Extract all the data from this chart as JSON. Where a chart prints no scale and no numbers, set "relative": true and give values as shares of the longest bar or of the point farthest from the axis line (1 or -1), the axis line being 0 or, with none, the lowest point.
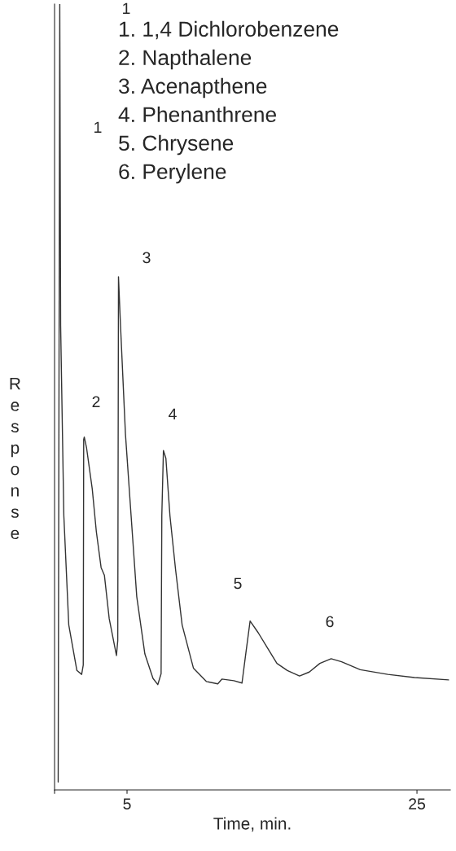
{
  "chart_data": {
    "type": "line",
    "relative": true,
    "xlabel": "Time, min.",
    "ylabel": "Response",
    "xlim": [
      0,
      27.3
    ],
    "xticks": [
      {
        "value": 0,
        "label": null
      },
      5,
      25
    ],
    "x": [
      0.25,
      0.36,
      0.42,
      0.64,
      0.98,
      1.54,
      1.87,
      1.98,
      2.01,
      2.05,
      2.21,
      2.6,
      2.88,
      3.21,
      3.44,
      3.77,
      4.27,
      4.36,
      4.41,
      4.55,
      4.89,
      5.28,
      5.67,
      6.23,
      6.79,
      7.12,
      7.35,
      7.4,
      7.51,
      7.68,
      7.96,
      8.35,
      8.8,
      9.58,
      10.47,
      11.26,
      11.54,
      12.37,
      12.93,
      13.21,
      13.49,
      14.05,
      14.61,
      15.34,
      16.06,
      16.9,
      17.57,
      18.3,
      19.08,
      19.8,
      21.09,
      22.99,
      24.83,
      27.18
    ],
    "series": [
      {
        "color": "#333333",
        "values": [
          0.01,
          1.0,
          0.591,
          0.349,
          0.21,
          0.152,
          0.147,
          0.159,
          0.446,
          0.449,
          0.435,
          0.383,
          0.329,
          0.283,
          0.273,
          0.218,
          0.171,
          0.19,
          0.653,
          0.591,
          0.453,
          0.349,
          0.246,
          0.173,
          0.142,
          0.134,
          0.148,
          0.349,
          0.432,
          0.422,
          0.349,
          0.28,
          0.21,
          0.155,
          0.138,
          0.135,
          0.141,
          0.139,
          0.136,
          0.176,
          0.215,
          0.2,
          0.183,
          0.161,
          0.152,
          0.145,
          0.15,
          0.161,
          0.167,
          0.163,
          0.153,
          0.147,
          0.143,
          0.14
        ]
      }
    ],
    "annotations": [
      "1. 1,4 Dichlorobenzene",
      "2. Napthalene",
      "3. Acenapthene",
      "4. Phenanthrene",
      "5. Chrysene",
      "6. Perylene",
      "1",
      "1",
      "2",
      "3",
      "4",
      "5",
      "6"
    ],
    "grid": false,
    "marker": "none",
    "line_style": "solid"
  }
}
